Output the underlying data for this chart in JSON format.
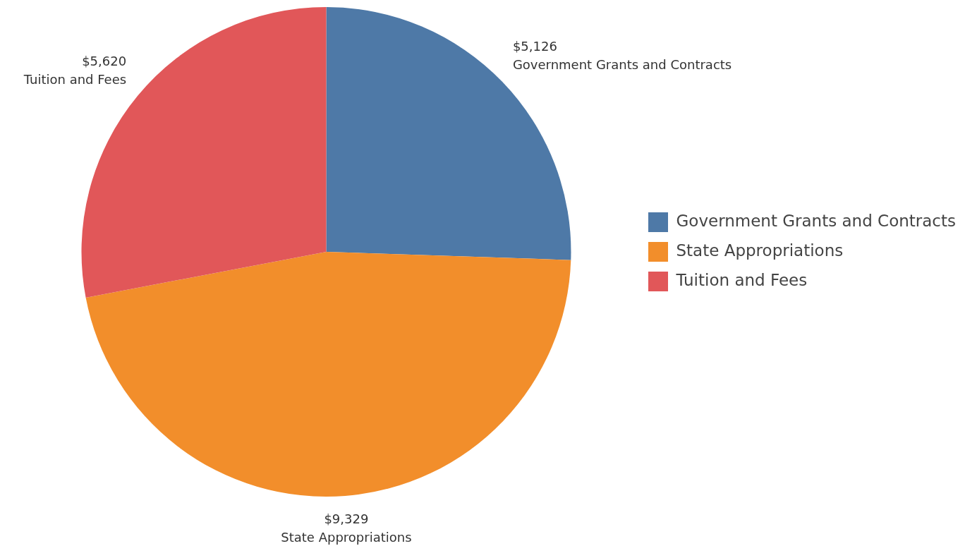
{
  "chart_data": {
    "type": "pie",
    "categories": [
      "Government Grants and Contracts",
      "State Appropriations",
      "Tuition and Fees"
    ],
    "values": [
      5126,
      9329,
      5620
    ],
    "colors": [
      "#4e79a7",
      "#f28e2b",
      "#e15759"
    ],
    "value_labels": [
      "$5,126",
      "$9,329",
      "$5,620"
    ],
    "legend": "right"
  }
}
